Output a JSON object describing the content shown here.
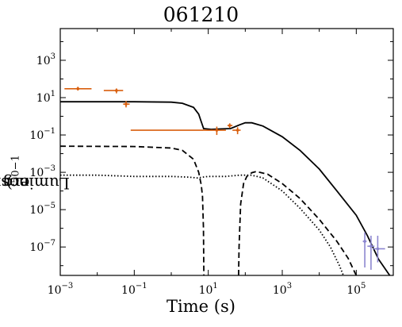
{
  "chart_data": {
    "type": "line",
    "title": "061210",
    "xlabel": "Time (s)",
    "ylabel": {
      "prefix": "Luminosity (10",
      "exp1": "50",
      "mid": " erg s",
      "exp2": "−1",
      "suffix": ")"
    },
    "xscale": "log",
    "yscale": "log",
    "xlim": [
      0.001,
      1000000
    ],
    "ylim": [
      3e-09,
      50000
    ],
    "xticks": [
      {
        "v": 0.001,
        "base": "10",
        "exp": "−3"
      },
      {
        "v": 0.1,
        "base": "10",
        "exp": "−1"
      },
      {
        "v": 10,
        "base": "10",
        "exp": "1"
      },
      {
        "v": 1000,
        "base": "10",
        "exp": "3"
      },
      {
        "v": 100000,
        "base": "10",
        "exp": "5"
      }
    ],
    "yticks": [
      {
        "v": 1e-07,
        "base": "10",
        "exp": "−7"
      },
      {
        "v": 1e-05,
        "base": "10",
        "exp": "−5"
      },
      {
        "v": 0.001,
        "base": "10",
        "exp": "−3"
      },
      {
        "v": 0.1,
        "base": "10",
        "exp": "−1"
      },
      {
        "v": 10,
        "base": "10",
        "exp": "1"
      },
      {
        "v": 1000,
        "base": "10",
        "exp": "3"
      }
    ],
    "grid": false,
    "legend": "none",
    "colors": {
      "orange": "#d95f0e",
      "purple": "#8c86d0",
      "line": "#000000"
    },
    "series": [
      {
        "style": "solid",
        "color": "#000000",
        "points": [
          [
            0.001,
            6
          ],
          [
            0.1,
            6
          ],
          [
            1,
            5.7
          ],
          [
            2,
            5
          ],
          [
            4,
            3
          ],
          [
            5.5,
            1.3
          ],
          [
            6.5,
            0.5
          ],
          [
            7.5,
            0.22
          ],
          [
            12,
            0.2
          ],
          [
            20,
            0.21
          ],
          [
            40,
            0.22
          ],
          [
            70,
            0.35
          ],
          [
            100,
            0.45
          ],
          [
            150,
            0.45
          ],
          [
            300,
            0.3
          ],
          [
            1000,
            0.08
          ],
          [
            3000,
            0.015
          ],
          [
            10000,
            0.0015
          ],
          [
            30000,
            0.0001
          ],
          [
            100000,
            5e-06
          ],
          [
            200000,
            4e-07
          ],
          [
            400000,
            2.2e-08
          ],
          [
            800000,
            3e-09
          ]
        ]
      },
      {
        "style": "dashed",
        "color": "#000000",
        "points": [
          [
            0.001,
            0.025
          ],
          [
            0.1,
            0.024
          ],
          [
            1,
            0.02
          ],
          [
            2,
            0.015
          ],
          [
            4,
            0.005
          ],
          [
            5.5,
            0.001
          ],
          [
            6.5,
            0.0002
          ],
          [
            7,
            5e-05
          ],
          [
            7.4,
            1e-06
          ],
          [
            7.6,
            3e-09
          ]
        ],
        "points2": [
          [
            66,
            3e-09
          ],
          [
            68,
            1e-07
          ],
          [
            75,
            2e-05
          ],
          [
            90,
            0.00025
          ],
          [
            110,
            0.0006
          ],
          [
            150,
            0.00095
          ],
          [
            200,
            0.0011
          ],
          [
            400,
            0.0008
          ],
          [
            1000,
            0.00025
          ],
          [
            3000,
            4e-05
          ],
          [
            10000,
            3e-06
          ],
          [
            30000,
            2e-07
          ],
          [
            60000,
            2.5e-08
          ],
          [
            100000,
            3e-09
          ]
        ]
      },
      {
        "style": "dotted",
        "color": "#000000",
        "points": [
          [
            0.001,
            0.0007
          ],
          [
            0.01,
            0.0007
          ],
          [
            0.1,
            0.0006
          ],
          [
            1,
            0.0006
          ],
          [
            3,
            0.00055
          ],
          [
            5,
            0.0005
          ],
          [
            7,
            0.00055
          ],
          [
            10,
            0.0006
          ],
          [
            30,
            0.0006
          ],
          [
            70,
            0.0007
          ],
          [
            150,
            0.0007
          ],
          [
            300,
            0.0005
          ],
          [
            1000,
            0.0001
          ],
          [
            3000,
            1.2e-05
          ],
          [
            10000,
            8e-07
          ],
          [
            20000,
            1e-07
          ],
          [
            35000,
            1e-08
          ],
          [
            45000,
            3e-09
          ]
        ]
      }
    ],
    "observations": [
      {
        "instrument_color": "#d95f0e",
        "x": 0.003,
        "xerr": [
          0.0013,
          0.007
        ],
        "y": 30,
        "yerr": [
          24,
          38
        ]
      },
      {
        "instrument_color": "#d95f0e",
        "x": 0.033,
        "xerr": [
          0.015,
          0.05
        ],
        "y": 24,
        "yerr": [
          17,
          31
        ]
      },
      {
        "instrument_color": "#d95f0e",
        "x": 0.06,
        "xerr": [
          0.05,
          0.075
        ],
        "y": 4.5,
        "yerr": [
          3,
          6.5
        ]
      },
      {
        "instrument_color": "#d95f0e",
        "x": 17,
        "xerr": [
          0.08,
          30
        ],
        "y": 0.18,
        "yerr": [
          0.1,
          0.28
        ]
      },
      {
        "instrument_color": "#d95f0e",
        "x": 38,
        "xerr": [
          33,
          45
        ],
        "y": 0.32,
        "yerr": [
          0.24,
          0.42
        ]
      },
      {
        "instrument_color": "#d95f0e",
        "x": 62,
        "xerr": [
          45,
          75
        ],
        "y": 0.18,
        "yerr": [
          0.11,
          0.26
        ]
      },
      {
        "instrument_color": "#8c86d0",
        "x": 170000,
        "xerr": [
          150000,
          190000
        ],
        "y": 2e-07,
        "yerr": [
          8e-09,
          6e-07
        ]
      },
      {
        "instrument_color": "#8c86d0",
        "x": 250000,
        "xerr": [
          200000,
          310000
        ],
        "y": 1.1e-07,
        "yerr": [
          6e-09,
          4e-07
        ]
      },
      {
        "instrument_color": "#8c86d0",
        "x": 380000,
        "xerr": [
          280000,
          600000
        ],
        "y": 8e-08,
        "yerr": [
          1.5e-08,
          4e-07
        ]
      }
    ]
  }
}
